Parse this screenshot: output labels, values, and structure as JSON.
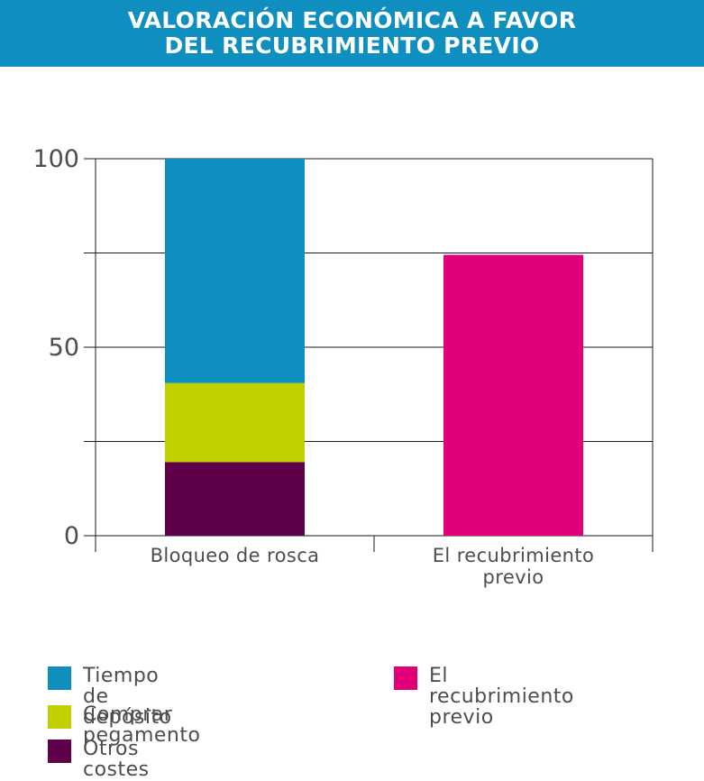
{
  "header": {
    "title_line1": "VALORACIÓN ECONÓMICA A FAVOR",
    "title_line2": "DEL RECUBRIMIENTO PREVIO"
  },
  "colors": {
    "header_bg": "#0e8fc0",
    "tiempo": "#0e8fc0",
    "pegamento": "#c0d000",
    "otros": "#5e004a",
    "recubrimiento": "#e2007a"
  },
  "chart_data": {
    "type": "bar",
    "stacked": true,
    "categories": [
      [
        "Bloqueo de rosca"
      ],
      [
        "El recubrimiento",
        "previo"
      ]
    ],
    "yticks": [
      "100",
      "50",
      "0"
    ],
    "ylim": [
      0,
      100
    ],
    "grid": true,
    "series": [
      {
        "name": "Otros costes",
        "color": "#5e004a",
        "values": [
          19.5,
          0
        ]
      },
      {
        "name": "Comprar pegamento",
        "color": "#c0d000",
        "values": [
          21,
          0
        ]
      },
      {
        "name": "Tiempo de depósito",
        "color": "#0e8fc0",
        "values": [
          59.5,
          0
        ]
      },
      {
        "name": "El recubrimiento previo",
        "color": "#e2007a",
        "values": [
          0,
          74.5
        ]
      }
    ]
  },
  "legend": [
    {
      "label": "Tiempo de depósito",
      "color": "#0e8fc0"
    },
    {
      "label": "Comprar pegamento",
      "color": "#c0d000"
    },
    {
      "label": "Otros costes",
      "color": "#5e004a"
    },
    {
      "label": "El recubrimiento\nprevio",
      "color": "#e2007a"
    }
  ]
}
